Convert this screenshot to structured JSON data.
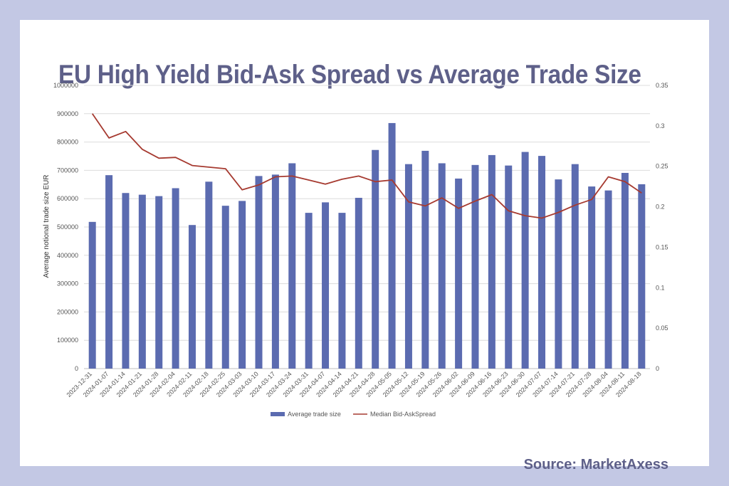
{
  "title": "EU High Yield Bid-Ask Spread vs Average Trade Size",
  "source": "Source: MarketAxess",
  "chart_data": {
    "type": "bar+line",
    "x": [
      "2023-12-31",
      "2024-01-07",
      "2024-01-14",
      "2024-01-21",
      "2024-01-28",
      "2024-02-04",
      "2024-02-11",
      "2024-02-18",
      "2024-02-25",
      "2024-03-03",
      "2024-03-10",
      "2024-03-17",
      "2024-03-24",
      "2024-03-31",
      "2024-04-07",
      "2024-04-14",
      "2024-04-21",
      "2024-04-28",
      "2024-05-05",
      "2024-05-12",
      "2024-05-19",
      "2024-05-26",
      "2024-06-02",
      "2024-06-09",
      "2024-06-16",
      "2024-06-23",
      "2024-06-30",
      "2024-07-07",
      "2024-07-14",
      "2024-07-21",
      "2024-07-28",
      "2024-08-04",
      "2024-08-11",
      "2024-08-18"
    ],
    "series": [
      {
        "name": "Average trade size",
        "type": "bar",
        "axis": "left",
        "color": "#5b6bb0",
        "values": [
          518000,
          683000,
          620000,
          614000,
          609000,
          637000,
          507000,
          660000,
          575000,
          592000,
          680000,
          685000,
          725000,
          550000,
          587000,
          550000,
          603000,
          772000,
          867000,
          722000,
          769000,
          725000,
          671000,
          719000,
          754000,
          717000,
          765000,
          751000,
          668000,
          722000,
          643000,
          629000,
          691000,
          651000
        ]
      },
      {
        "name": "Median Bid-AskSpread",
        "type": "line",
        "axis": "right",
        "color": "#a63a30",
        "values": [
          0.315,
          0.285,
          0.293,
          0.271,
          0.26,
          0.261,
          0.251,
          0.249,
          0.247,
          0.221,
          0.227,
          0.237,
          0.238,
          0.233,
          0.228,
          0.234,
          0.238,
          0.231,
          0.233,
          0.206,
          0.201,
          0.211,
          0.198,
          0.207,
          0.215,
          0.195,
          0.189,
          0.186,
          0.193,
          0.202,
          0.209,
          0.237,
          0.231,
          0.217
        ]
      }
    ],
    "ylabel": "Average notional  trade size EUR",
    "ylim": [
      0,
      1000000
    ],
    "yticks": [
      0,
      100000,
      200000,
      300000,
      400000,
      500000,
      600000,
      700000,
      800000,
      900000,
      1000000
    ],
    "y2lim": [
      0,
      0.35
    ],
    "y2ticks": [
      0,
      0.05,
      0.1,
      0.15,
      0.2,
      0.25,
      0.3,
      0.35
    ],
    "grid": true,
    "legend": "bottom"
  }
}
